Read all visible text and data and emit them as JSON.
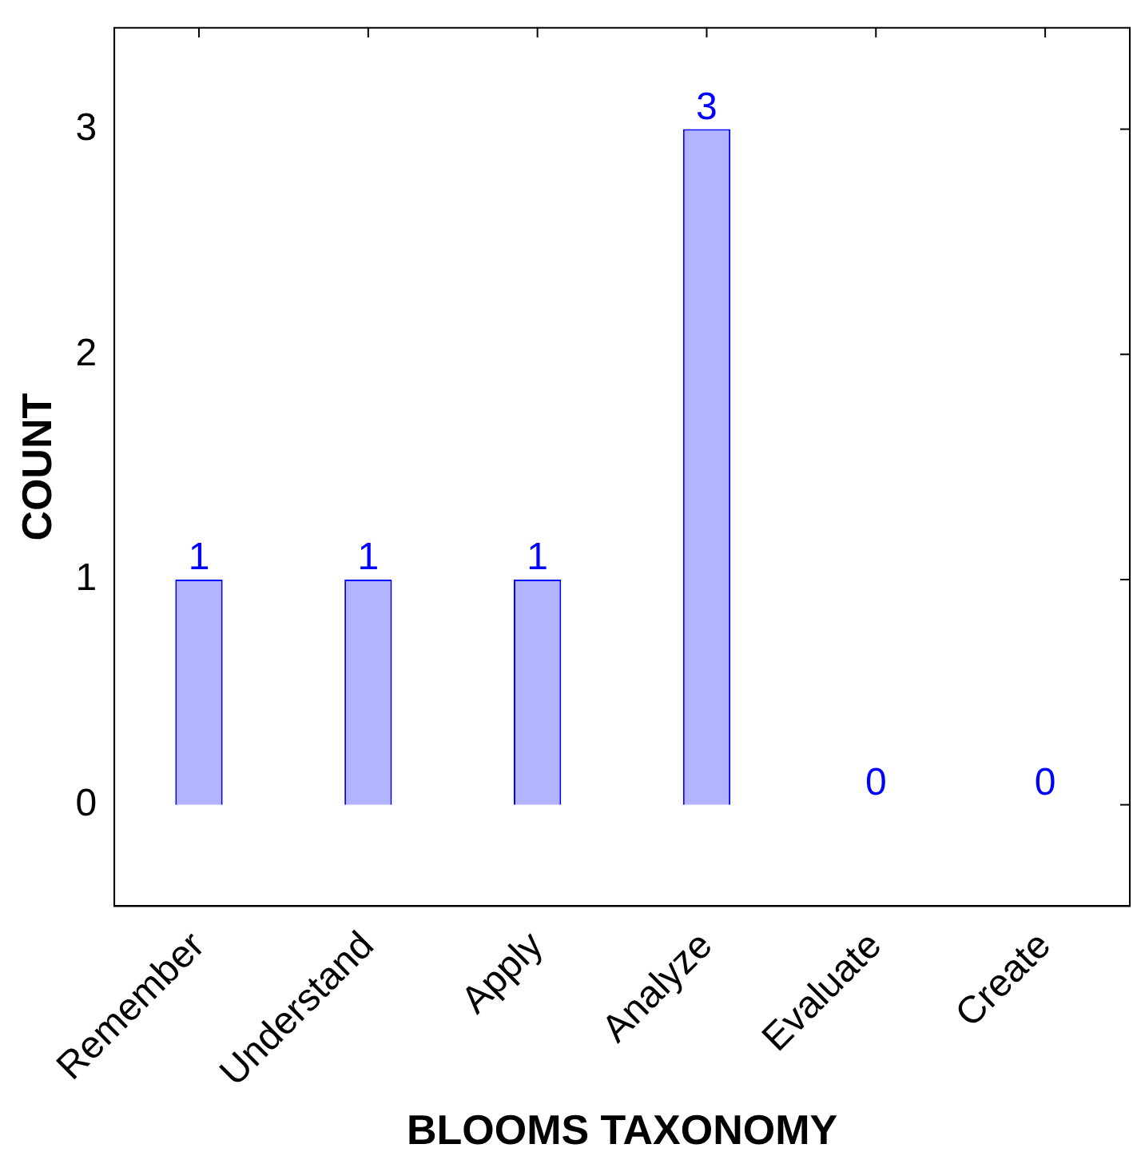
{
  "chart_data": {
    "type": "bar",
    "xlabel": "BLOOMS TAXONOMY",
    "ylabel": "COUNT",
    "categories": [
      "Remember",
      "Understand",
      "Apply",
      "Analyze",
      "Evaluate",
      "Create"
    ],
    "values": [
      1,
      1,
      1,
      3,
      0,
      0
    ],
    "color": "#b3b3ff",
    "ylim": [
      -0.45,
      3.45
    ],
    "yticks": [
      0,
      1,
      2,
      3
    ],
    "grid": false,
    "legend": false,
    "data_labels": true
  }
}
